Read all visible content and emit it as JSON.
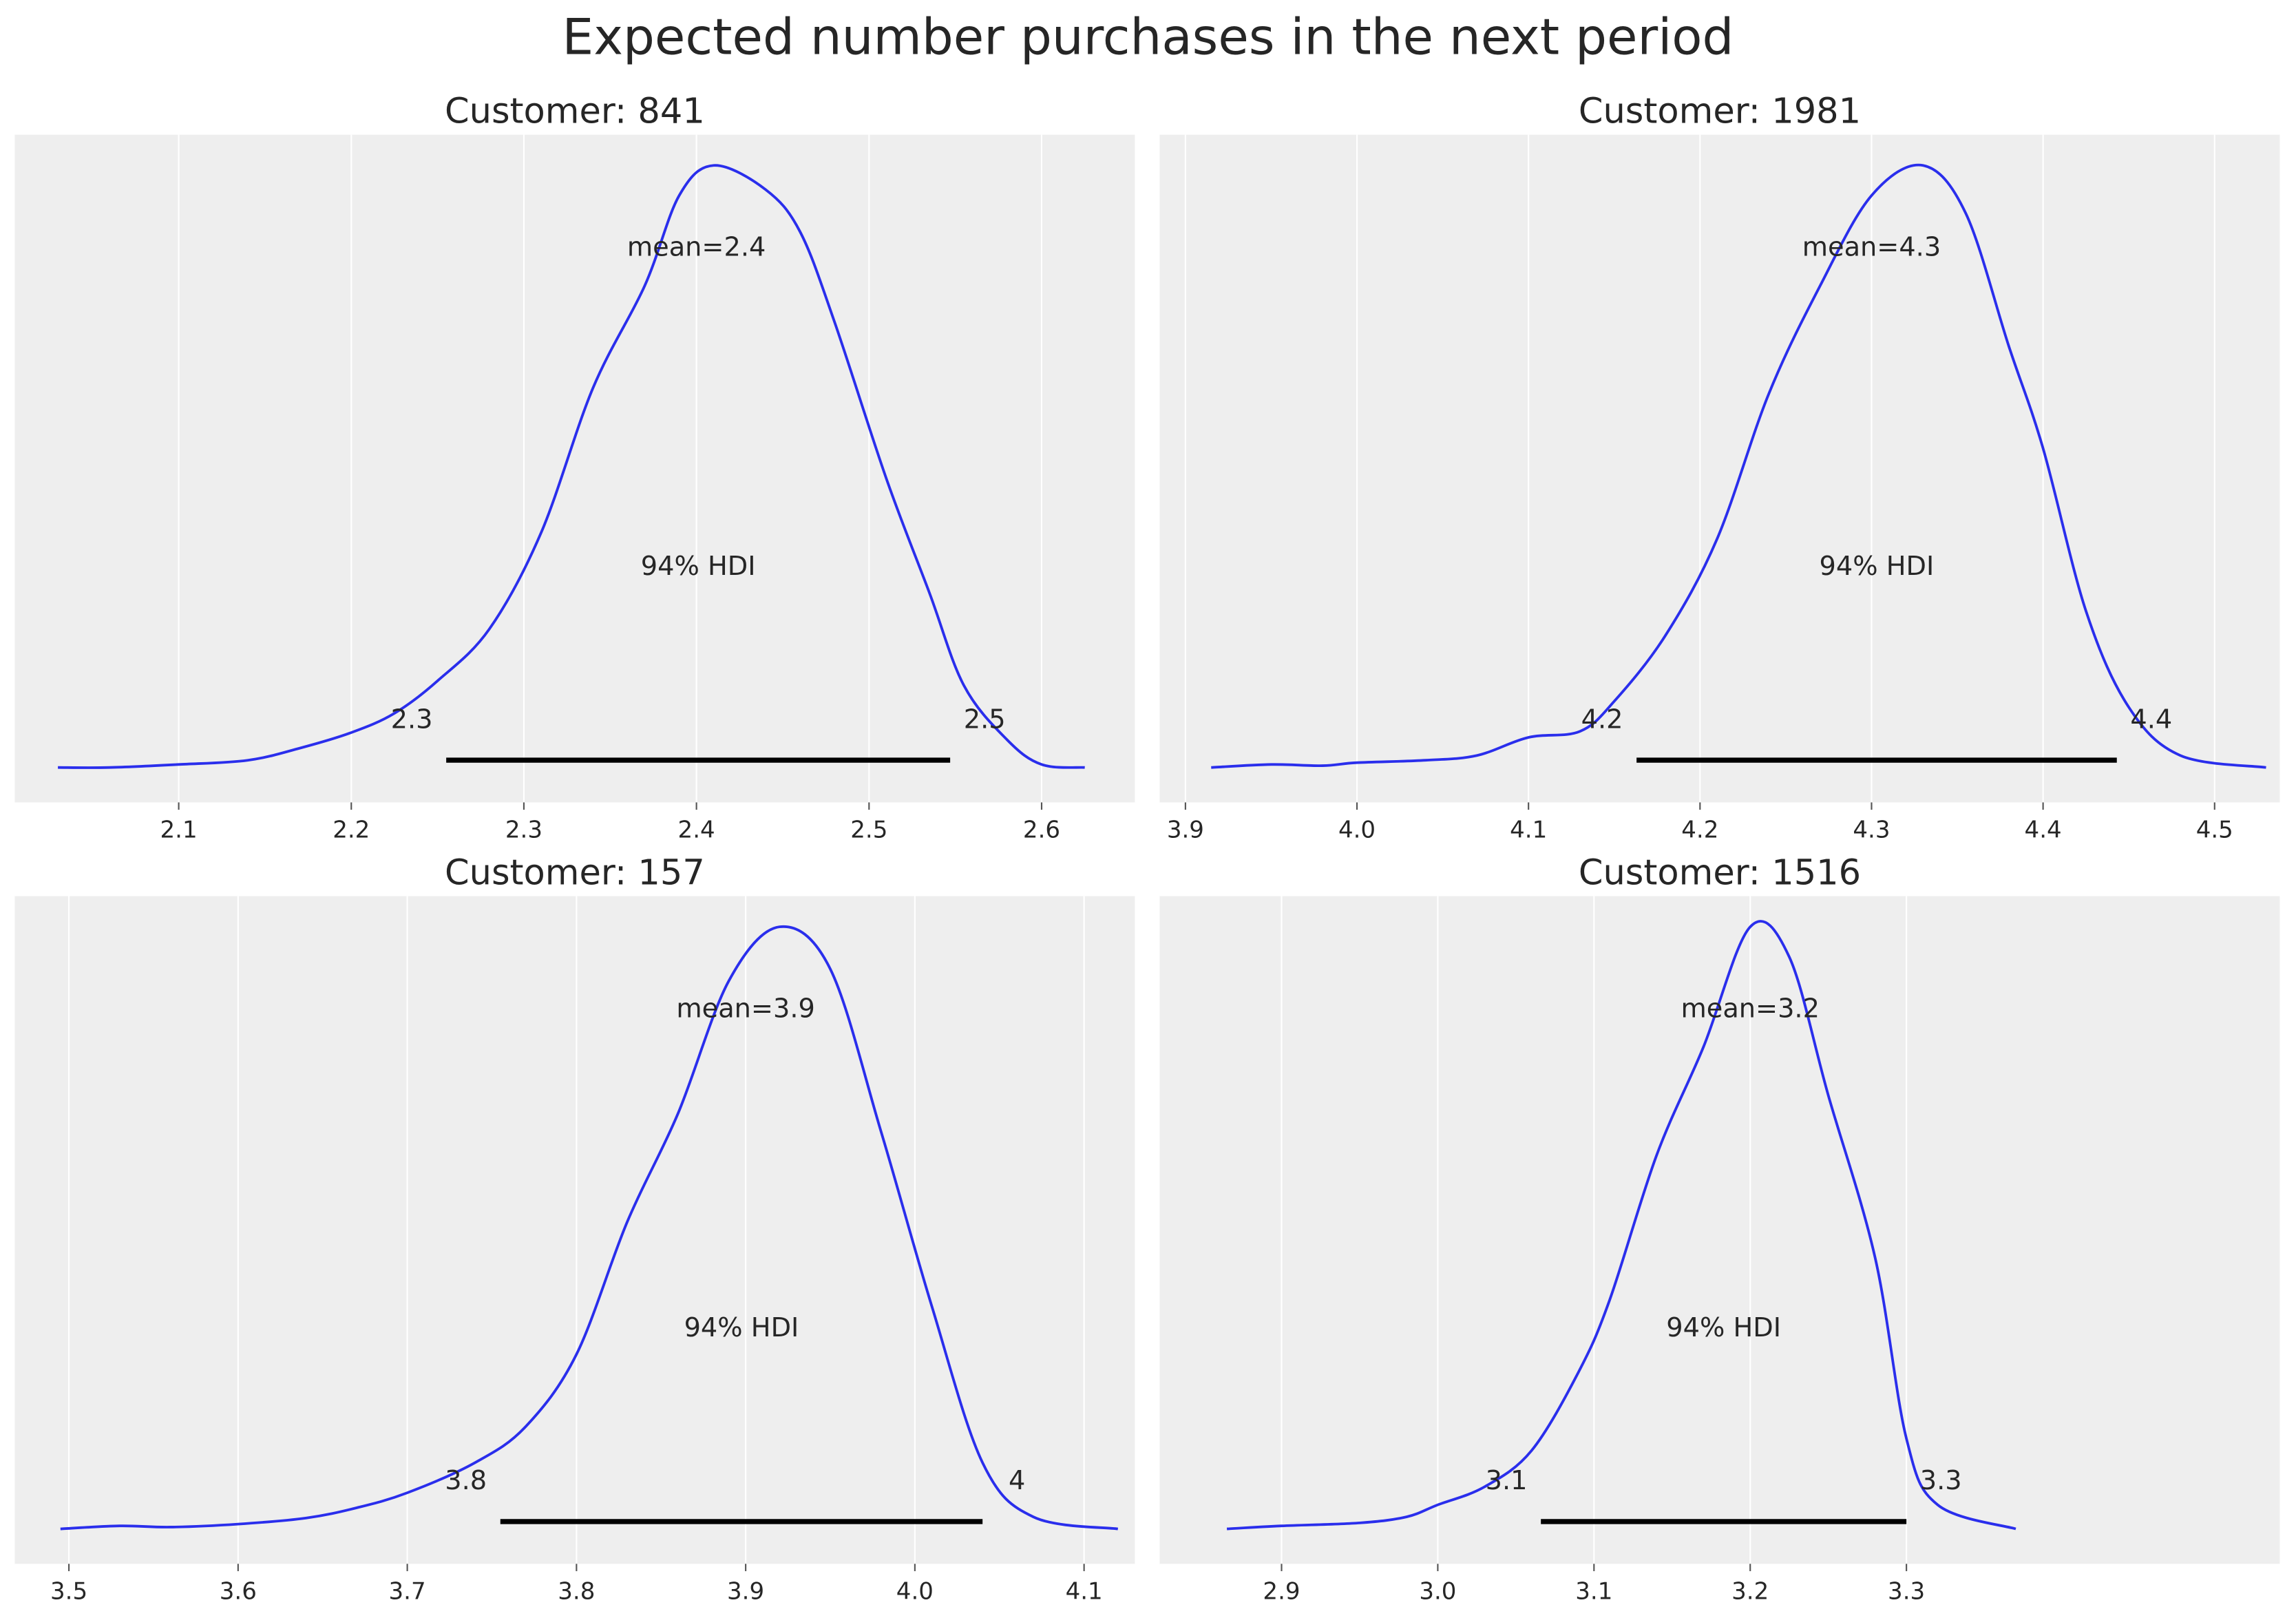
{
  "title": "Expected number purchases in the next period",
  "colors": {
    "curve": "#2a2eec",
    "axes_bg": "#eeeeee",
    "grid": "#ffffff",
    "hdi": "#000000",
    "text": "#262626"
  },
  "chart_data": [
    {
      "type": "line",
      "title": "Customer: 841",
      "xlim": [
        2.005,
        2.654
      ],
      "ylim": [
        -0.058,
        1.051
      ],
      "grid": "x",
      "xticks": [
        2.1,
        2.2,
        2.3,
        2.4,
        2.5,
        2.6
      ],
      "xtick_labels": [
        "2.1",
        "2.2",
        "2.3",
        "2.4",
        "2.5",
        "2.6"
      ],
      "x": [
        2.03,
        2.06,
        2.1,
        2.14,
        2.17,
        2.2,
        2.225,
        2.25,
        2.28,
        2.31,
        2.34,
        2.37,
        2.39,
        2.41,
        2.44,
        2.46,
        2.48,
        2.51,
        2.535,
        2.555,
        2.58,
        2.6,
        2.625
      ],
      "y": [
        0,
        0,
        0.005,
        0.012,
        0.032,
        0.058,
        0.09,
        0.144,
        0.23,
        0.39,
        0.63,
        0.8,
        0.95,
        1.0,
        0.96,
        0.89,
        0.74,
        0.48,
        0.29,
        0.136,
        0.046,
        0.005,
        0
      ],
      "mean": 2.4,
      "mean_label": "mean=2.4",
      "hdi": [
        2.255,
        2.547
      ],
      "hdi_label": "94% HDI",
      "hdi_low_label": "2.3",
      "hdi_high_label": "2.5"
    },
    {
      "type": "line",
      "title": "Customer: 1981",
      "xlim": [
        3.885,
        4.538
      ],
      "ylim": [
        -0.058,
        1.051
      ],
      "grid": "x",
      "xticks": [
        3.9,
        4.0,
        4.1,
        4.2,
        4.3,
        4.4,
        4.5
      ],
      "xtick_labels": [
        "3.9",
        "4.0",
        "4.1",
        "4.2",
        "4.3",
        "4.4",
        "4.5"
      ],
      "x": [
        3.915,
        3.95,
        3.98,
        4.0,
        4.04,
        4.07,
        4.1,
        4.13,
        4.15,
        4.18,
        4.21,
        4.24,
        4.27,
        4.3,
        4.33,
        4.355,
        4.38,
        4.4,
        4.425,
        4.45,
        4.48,
        4.53
      ],
      "y": [
        0,
        0.005,
        0.003,
        0.008,
        0.012,
        0.02,
        0.05,
        0.06,
        0.11,
        0.22,
        0.38,
        0.62,
        0.8,
        0.95,
        1.0,
        0.92,
        0.7,
        0.53,
        0.26,
        0.1,
        0.02,
        0
      ],
      "mean": 4.3,
      "mean_label": "mean=4.3",
      "hdi": [
        4.163,
        4.443
      ],
      "hdi_label": "94% HDI",
      "hdi_low_label": "4.2",
      "hdi_high_label": "4.4"
    },
    {
      "type": "line",
      "title": "Customer: 157",
      "xlim": [
        3.468,
        4.13
      ],
      "ylim": [
        -0.058,
        1.051
      ],
      "grid": "x",
      "xticks": [
        3.5,
        3.6,
        3.7,
        3.8,
        3.9,
        4.0,
        4.1
      ],
      "xtick_labels": [
        "3.5",
        "3.6",
        "3.7",
        "3.8",
        "3.9",
        "4.0",
        "4.1"
      ],
      "x": [
        3.495,
        3.53,
        3.56,
        3.6,
        3.64,
        3.67,
        3.7,
        3.74,
        3.77,
        3.8,
        3.83,
        3.86,
        3.89,
        3.92,
        3.95,
        3.98,
        4.01,
        4.04,
        4.07,
        4.12
      ],
      "y": [
        0,
        0.005,
        0.003,
        0.008,
        0.018,
        0.035,
        0.06,
        0.11,
        0.17,
        0.29,
        0.51,
        0.69,
        0.91,
        1.0,
        0.93,
        0.66,
        0.37,
        0.11,
        0.02,
        0
      ],
      "mean": 3.9,
      "mean_label": "mean=3.9",
      "hdi": [
        3.755,
        4.04
      ],
      "hdi_label": "94% HDI",
      "hdi_low_label": "3.8",
      "hdi_high_label": "4"
    },
    {
      "type": "line",
      "title": "Customer: 1516",
      "xlim": [
        2.822,
        3.539
      ],
      "ylim": [
        -0.058,
        1.051
      ],
      "grid": "x",
      "xticks": [
        2.9,
        3.0,
        3.1,
        3.2,
        3.3
      ],
      "xtick_labels": [
        "2.9",
        "3.0",
        "3.1",
        "3.2",
        "3.3"
      ],
      "x": [
        2.865,
        2.9,
        2.95,
        2.98,
        3.0,
        3.03,
        3.06,
        3.09,
        3.11,
        3.14,
        3.17,
        3.2,
        3.225,
        3.25,
        3.28,
        3.3,
        3.32,
        3.37
      ],
      "y": [
        0,
        0.005,
        0.01,
        0.02,
        0.04,
        0.07,
        0.13,
        0.26,
        0.38,
        0.62,
        0.8,
        1.0,
        0.95,
        0.72,
        0.45,
        0.15,
        0.04,
        0
      ],
      "mean": 3.2,
      "mean_label": "mean=3.2",
      "hdi": [
        3.066,
        3.3
      ],
      "hdi_label": "94% HDI",
      "hdi_low_label": "3.1",
      "hdi_high_label": "3.3"
    }
  ]
}
